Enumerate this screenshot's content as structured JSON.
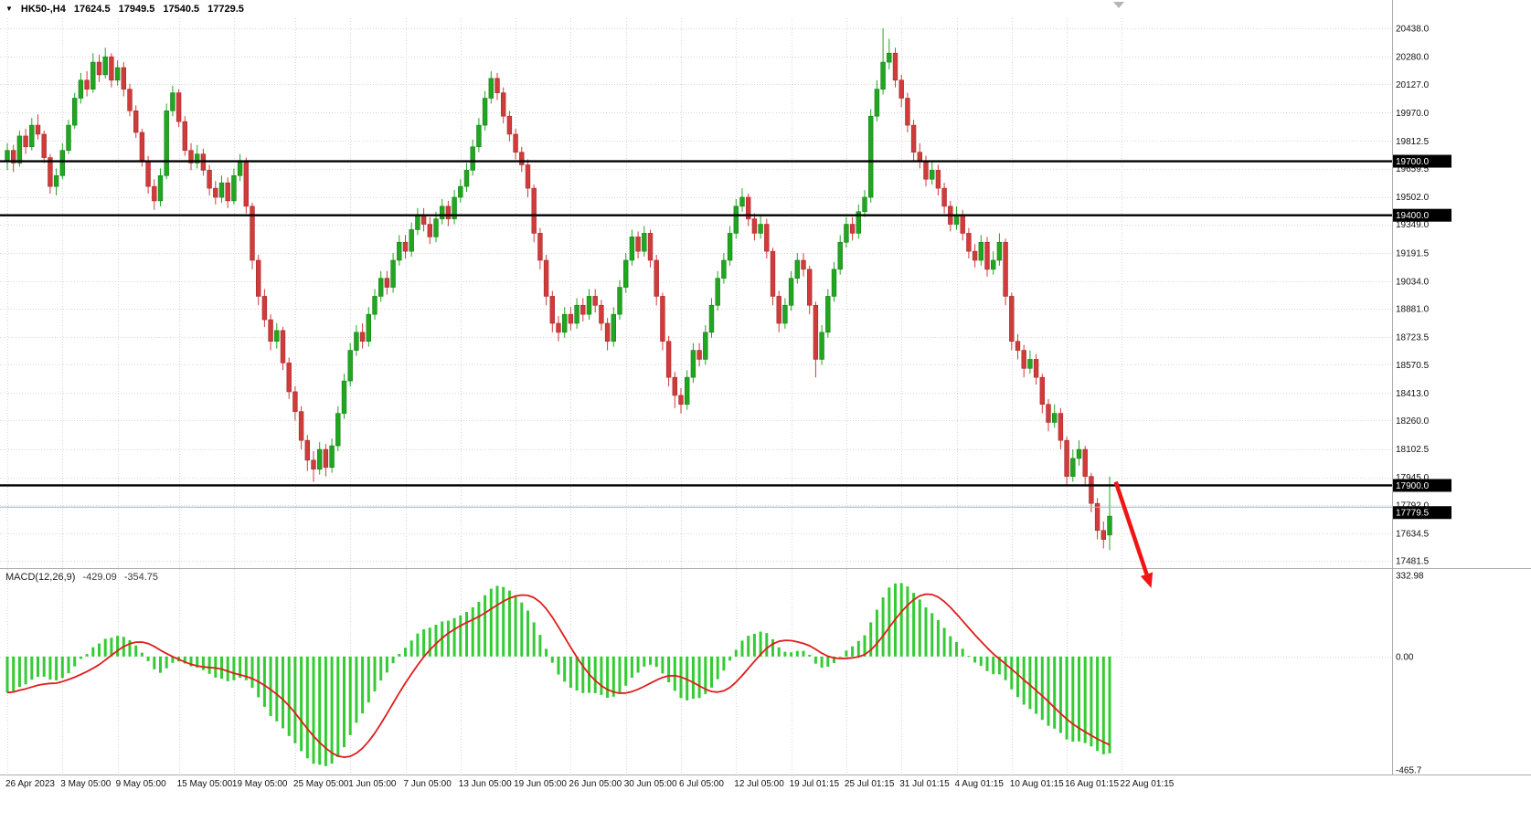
{
  "title": {
    "marker_icon": "▼",
    "symbol_period": "HK50-,H4",
    "open": "17624.5",
    "high": "17949.5",
    "low": "17540.5",
    "close": "17729.5"
  },
  "price_axis": {
    "max": 20438.0,
    "min": 17481.5,
    "labels": [
      "20438.0",
      "20280.0",
      "20127.0",
      "19970.0",
      "19812.5",
      "19659.5",
      "19502.0",
      "19349.0",
      "19191.5",
      "19034.0",
      "18881.0",
      "18723.5",
      "18570.5",
      "18413.0",
      "18260.0",
      "18102.5",
      "17945.0",
      "17792.0",
      "17634.5",
      "17481.5"
    ],
    "levels": [
      {
        "value": 19700.0,
        "label": "19700.0"
      },
      {
        "value": 19400.0,
        "label": "19400.0"
      },
      {
        "value": 17900.0,
        "label": "17900.0"
      }
    ],
    "bid": {
      "value": 17779.5,
      "label": "17779.5",
      "is_bid": true
    }
  },
  "time_axis": {
    "labels": [
      {
        "i": 0,
        "t": "26 Apr 2023"
      },
      {
        "i": 9,
        "t": "3 May 05:00"
      },
      {
        "i": 18,
        "t": "9 May 05:00"
      },
      {
        "i": 28,
        "t": "15 May 05:00"
      },
      {
        "i": 37,
        "t": "19 May 05:00"
      },
      {
        "i": 47,
        "t": "25 May 05:00"
      },
      {
        "i": 56,
        "t": "1 Jun 05:00"
      },
      {
        "i": 65,
        "t": "7 Jun 05:00"
      },
      {
        "i": 74,
        "t": "13 Jun 05:00"
      },
      {
        "i": 83,
        "t": "19 Jun 05:00"
      },
      {
        "i": 92,
        "t": "26 Jun 05:00"
      },
      {
        "i": 101,
        "t": "30 Jun 05:00"
      },
      {
        "i": 110,
        "t": "6 Jul 05:00"
      },
      {
        "i": 119,
        "t": "12 Jul 05:00"
      },
      {
        "i": 128,
        "t": "19 Jul 01:15"
      },
      {
        "i": 137,
        "t": "25 Jul 01:15"
      },
      {
        "i": 146,
        "t": "31 Jul 01:15"
      },
      {
        "i": 155,
        "t": "4 Aug 01:15"
      },
      {
        "i": 164,
        "t": "10 Aug 01:15"
      },
      {
        "i": 173,
        "t": "16 Aug 01:15"
      },
      {
        "i": 182,
        "t": "22 Aug 01:15"
      }
    ]
  },
  "chart_data": {
    "type": "candlestick",
    "symbol": "HK50-",
    "timeframe": "H4",
    "candle_fields": [
      "open",
      "high",
      "low",
      "close"
    ],
    "hlines": [
      19700.0,
      19400.0,
      17900.0
    ],
    "bid_price": 17779.5,
    "annotation_arrow": {
      "from_index": 181,
      "from_price": 17920,
      "to_index": 186.8,
      "to_price": 17330
    },
    "candles": [
      [
        19700,
        19800,
        19650,
        19760
      ],
      [
        19760,
        19790,
        19640,
        19690
      ],
      [
        19690,
        19870,
        19670,
        19840
      ],
      [
        19840,
        19880,
        19740,
        19780
      ],
      [
        19780,
        19940,
        19760,
        19900
      ],
      [
        19900,
        19960,
        19820,
        19850
      ],
      [
        19850,
        19870,
        19690,
        19720
      ],
      [
        19720,
        19740,
        19520,
        19560
      ],
      [
        19560,
        19660,
        19510,
        19620
      ],
      [
        19620,
        19800,
        19600,
        19760
      ],
      [
        19760,
        19930,
        19740,
        19900
      ],
      [
        19900,
        20080,
        19880,
        20050
      ],
      [
        20050,
        20190,
        20020,
        20150
      ],
      [
        20150,
        20200,
        20060,
        20100
      ],
      [
        20100,
        20300,
        20080,
        20250
      ],
      [
        20250,
        20290,
        20140,
        20180
      ],
      [
        20180,
        20330,
        20160,
        20280
      ],
      [
        20280,
        20300,
        20110,
        20150
      ],
      [
        20150,
        20260,
        20120,
        20220
      ],
      [
        20220,
        20250,
        20060,
        20100
      ],
      [
        20100,
        20130,
        19950,
        19980
      ],
      [
        19980,
        20010,
        19830,
        19860
      ],
      [
        19860,
        19880,
        19670,
        19700
      ],
      [
        19700,
        19730,
        19520,
        19560
      ],
      [
        19560,
        19600,
        19430,
        19480
      ],
      [
        19480,
        19660,
        19450,
        19620
      ],
      [
        19620,
        20020,
        19600,
        19980
      ],
      [
        19980,
        20120,
        19950,
        20080
      ],
      [
        20080,
        20100,
        19890,
        19920
      ],
      [
        19920,
        19950,
        19730,
        19760
      ],
      [
        19760,
        19800,
        19650,
        19690
      ],
      [
        19690,
        19790,
        19660,
        19740
      ],
      [
        19740,
        19770,
        19620,
        19650
      ],
      [
        19650,
        19680,
        19510,
        19550
      ],
      [
        19550,
        19590,
        19460,
        19500
      ],
      [
        19500,
        19620,
        19470,
        19580
      ],
      [
        19580,
        19610,
        19440,
        19480
      ],
      [
        19480,
        19660,
        19460,
        19620
      ],
      [
        19620,
        19740,
        19590,
        19700
      ],
      [
        19700,
        19720,
        19410,
        19450
      ],
      [
        19450,
        19470,
        19100,
        19150
      ],
      [
        19150,
        19180,
        18900,
        18950
      ],
      [
        18950,
        18990,
        18780,
        18820
      ],
      [
        18820,
        18850,
        18650,
        18700
      ],
      [
        18700,
        18800,
        18660,
        18760
      ],
      [
        18760,
        18780,
        18540,
        18580
      ],
      [
        18580,
        18610,
        18380,
        18420
      ],
      [
        18420,
        18450,
        18260,
        18310
      ],
      [
        18310,
        18340,
        18100,
        18150
      ],
      [
        18150,
        18180,
        17980,
        18040
      ],
      [
        18040,
        18090,
        17920,
        17990
      ],
      [
        17990,
        18140,
        17960,
        18100
      ],
      [
        18100,
        18130,
        17950,
        18000
      ],
      [
        18000,
        18160,
        17970,
        18120
      ],
      [
        18120,
        18340,
        18090,
        18300
      ],
      [
        18300,
        18520,
        18270,
        18480
      ],
      [
        18480,
        18690,
        18450,
        18650
      ],
      [
        18650,
        18790,
        18620,
        18750
      ],
      [
        18750,
        18800,
        18660,
        18700
      ],
      [
        18700,
        18890,
        18670,
        18850
      ],
      [
        18850,
        18990,
        18820,
        18950
      ],
      [
        18950,
        19090,
        18920,
        19050
      ],
      [
        19050,
        19090,
        18960,
        19000
      ],
      [
        19000,
        19190,
        18970,
        19150
      ],
      [
        19150,
        19290,
        19120,
        19250
      ],
      [
        19250,
        19290,
        19160,
        19200
      ],
      [
        19200,
        19360,
        19170,
        19320
      ],
      [
        19320,
        19440,
        19290,
        19400
      ],
      [
        19400,
        19440,
        19310,
        19350
      ],
      [
        19350,
        19390,
        19240,
        19280
      ],
      [
        19280,
        19420,
        19250,
        19380
      ],
      [
        19380,
        19490,
        19350,
        19450
      ],
      [
        19450,
        19480,
        19340,
        19380
      ],
      [
        19380,
        19540,
        19350,
        19500
      ],
      [
        19500,
        19600,
        19470,
        19560
      ],
      [
        19560,
        19690,
        19530,
        19650
      ],
      [
        19650,
        19820,
        19620,
        19780
      ],
      [
        19780,
        19940,
        19750,
        19900
      ],
      [
        19900,
        20090,
        19870,
        20050
      ],
      [
        20050,
        20200,
        20020,
        20160
      ],
      [
        20160,
        20190,
        20040,
        20080
      ],
      [
        20080,
        20110,
        19910,
        19950
      ],
      [
        19950,
        19980,
        19810,
        19850
      ],
      [
        19850,
        19880,
        19710,
        19750
      ],
      [
        19750,
        19780,
        19640,
        19680
      ],
      [
        19680,
        19710,
        19500,
        19550
      ],
      [
        19550,
        19570,
        19250,
        19300
      ],
      [
        19300,
        19330,
        19100,
        19150
      ],
      [
        19150,
        19180,
        18900,
        18950
      ],
      [
        18950,
        18980,
        18750,
        18800
      ],
      [
        18800,
        18840,
        18700,
        18750
      ],
      [
        18750,
        18890,
        18720,
        18850
      ],
      [
        18850,
        18890,
        18760,
        18800
      ],
      [
        18800,
        18940,
        18770,
        18900
      ],
      [
        18900,
        18940,
        18810,
        18850
      ],
      [
        18850,
        18990,
        18820,
        18950
      ],
      [
        18950,
        18990,
        18860,
        18900
      ],
      [
        18900,
        18930,
        18760,
        18800
      ],
      [
        18800,
        18830,
        18650,
        18700
      ],
      [
        18700,
        18890,
        18670,
        18850
      ],
      [
        18850,
        19040,
        18820,
        19000
      ],
      [
        19000,
        19190,
        18970,
        19150
      ],
      [
        19150,
        19320,
        19120,
        19280
      ],
      [
        19280,
        19310,
        19160,
        19200
      ],
      [
        19200,
        19340,
        19170,
        19300
      ],
      [
        19300,
        19320,
        19110,
        19150
      ],
      [
        19150,
        19180,
        18900,
        18950
      ],
      [
        18950,
        18970,
        18650,
        18700
      ],
      [
        18700,
        18730,
        18450,
        18500
      ],
      [
        18500,
        18530,
        18330,
        18400
      ],
      [
        18400,
        18440,
        18300,
        18350
      ],
      [
        18350,
        18540,
        18320,
        18500
      ],
      [
        18500,
        18690,
        18470,
        18650
      ],
      [
        18650,
        18690,
        18560,
        18600
      ],
      [
        18600,
        18790,
        18570,
        18750
      ],
      [
        18750,
        18940,
        18720,
        18900
      ],
      [
        18900,
        19090,
        18870,
        19050
      ],
      [
        19050,
        19190,
        19020,
        19150
      ],
      [
        19150,
        19340,
        19120,
        19300
      ],
      [
        19300,
        19490,
        19270,
        19450
      ],
      [
        19450,
        19550,
        19420,
        19500
      ],
      [
        19500,
        19520,
        19340,
        19380
      ],
      [
        19380,
        19410,
        19260,
        19300
      ],
      [
        19300,
        19400,
        19270,
        19350
      ],
      [
        19350,
        19380,
        19160,
        19200
      ],
      [
        19200,
        19220,
        18900,
        18950
      ],
      [
        18950,
        18980,
        18750,
        18800
      ],
      [
        18800,
        18940,
        18770,
        18900
      ],
      [
        18900,
        19090,
        18870,
        19050
      ],
      [
        19050,
        19190,
        19020,
        19150
      ],
      [
        19150,
        19190,
        19060,
        19100
      ],
      [
        19100,
        19120,
        18850,
        18900
      ],
      [
        18900,
        18920,
        18500,
        18600
      ],
      [
        18600,
        18790,
        18570,
        18750
      ],
      [
        18750,
        18990,
        18720,
        18950
      ],
      [
        18950,
        19140,
        18920,
        19100
      ],
      [
        19100,
        19290,
        19070,
        19250
      ],
      [
        19250,
        19390,
        19220,
        19350
      ],
      [
        19350,
        19390,
        19260,
        19300
      ],
      [
        19300,
        19460,
        19270,
        19420
      ],
      [
        19420,
        19540,
        19390,
        19500
      ],
      [
        19500,
        19990,
        19470,
        19950
      ],
      [
        19950,
        20150,
        19920,
        20100
      ],
      [
        20100,
        20438,
        20070,
        20250
      ],
      [
        20250,
        20380,
        20210,
        20300
      ],
      [
        20300,
        20330,
        20110,
        20150
      ],
      [
        20150,
        20180,
        20000,
        20050
      ],
      [
        20050,
        20080,
        19860,
        19900
      ],
      [
        19900,
        19930,
        19700,
        19750
      ],
      [
        19750,
        19800,
        19660,
        19700
      ],
      [
        19700,
        19730,
        19560,
        19600
      ],
      [
        19600,
        19700,
        19570,
        19650
      ],
      [
        19650,
        19680,
        19510,
        19550
      ],
      [
        19550,
        19580,
        19410,
        19450
      ],
      [
        19450,
        19480,
        19310,
        19350
      ],
      [
        19350,
        19450,
        19320,
        19400
      ],
      [
        19400,
        19430,
        19260,
        19300
      ],
      [
        19300,
        19330,
        19160,
        19200
      ],
      [
        19200,
        19240,
        19110,
        19150
      ],
      [
        19150,
        19290,
        19120,
        19250
      ],
      [
        19250,
        19280,
        19060,
        19100
      ],
      [
        19100,
        19200,
        19070,
        19150
      ],
      [
        19150,
        19300,
        19120,
        19250
      ],
      [
        19250,
        19270,
        18900,
        18950
      ],
      [
        18950,
        18970,
        18650,
        18700
      ],
      [
        18700,
        18740,
        18600,
        18650
      ],
      [
        18650,
        18680,
        18500,
        18550
      ],
      [
        18550,
        18650,
        18520,
        18600
      ],
      [
        18600,
        18630,
        18460,
        18500
      ],
      [
        18500,
        18520,
        18300,
        18350
      ],
      [
        18350,
        18380,
        18200,
        18250
      ],
      [
        18250,
        18350,
        18220,
        18300
      ],
      [
        18300,
        18330,
        18100,
        18150
      ],
      [
        18150,
        18170,
        17900,
        17950
      ],
      [
        17950,
        18100,
        17920,
        18050
      ],
      [
        18050,
        18150,
        18010,
        18100
      ],
      [
        18100,
        18120,
        17900,
        17950
      ],
      [
        17950,
        17970,
        17750,
        17800
      ],
      [
        17800,
        17830,
        17600,
        17650
      ],
      [
        17650,
        17700,
        17550,
        17600
      ],
      [
        17624.5,
        17949.5,
        17540.5,
        17729.5
      ]
    ]
  },
  "macd": {
    "name": "MACD(12,26,9)",
    "value": "-429.09",
    "signal": "-354.75",
    "params": {
      "fast": 12,
      "slow": 26,
      "signal": 9
    },
    "axis": {
      "max": 332.98,
      "min": -465.7
    },
    "axis_labels": [
      "332.98",
      "0.00",
      "-465.7"
    ]
  },
  "colors": {
    "bull": "#21a621",
    "bull_border": "#168016",
    "bear": "#d03b3b",
    "bear_border": "#a82a2a",
    "grid": "#d6d6d6",
    "hline": "#000000",
    "bid_line": "#9ab4cc",
    "macd_hist": "#35cb35",
    "macd_signal": "#e01c1c",
    "arrow": "#f01414",
    "badge_bg": "#000000",
    "badge_fg": "#ffffff"
  }
}
